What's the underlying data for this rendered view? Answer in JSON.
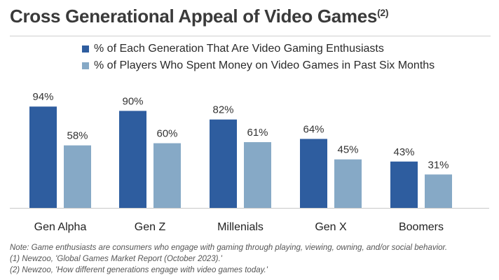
{
  "title": "Cross Generational Appeal of Video Games",
  "title_superscript": "(2)",
  "colors": {
    "series1": "#2e5d9f",
    "series2": "#86a9c6",
    "axis": "#c8c8c8"
  },
  "chart_data": {
    "type": "bar",
    "title": "Cross Generational Appeal of Video Games",
    "categories": [
      "Gen Alpha",
      "Gen Z",
      "Millenials",
      "Gen X",
      "Boomers"
    ],
    "series": [
      {
        "name": "% of Each Generation That Are Video Gaming Enthusiasts",
        "values": [
          94,
          90,
          82,
          64,
          43
        ],
        "labels": [
          "94%",
          "90%",
          "82%",
          "64%",
          "43%"
        ]
      },
      {
        "name": "% of Players Who Spent Money on Video Games in Past Six Months",
        "values": [
          58,
          60,
          61,
          45,
          31
        ],
        "labels": [
          "58%",
          "60%",
          "61%",
          "45%",
          "31%"
        ]
      }
    ],
    "xlabel": "",
    "ylabel": "",
    "ylim": [
      0,
      100
    ],
    "legend_position": "top",
    "grid": false
  },
  "notes": [
    "Note: Game enthusiasts are consumers who engage with gaming through playing, viewing, owning, and/or social behavior.",
    "(1) Newzoo, 'Global Games Market Report (October 2023).'",
    "(2) Newzoo, 'How different generations engage with video games today.'"
  ]
}
